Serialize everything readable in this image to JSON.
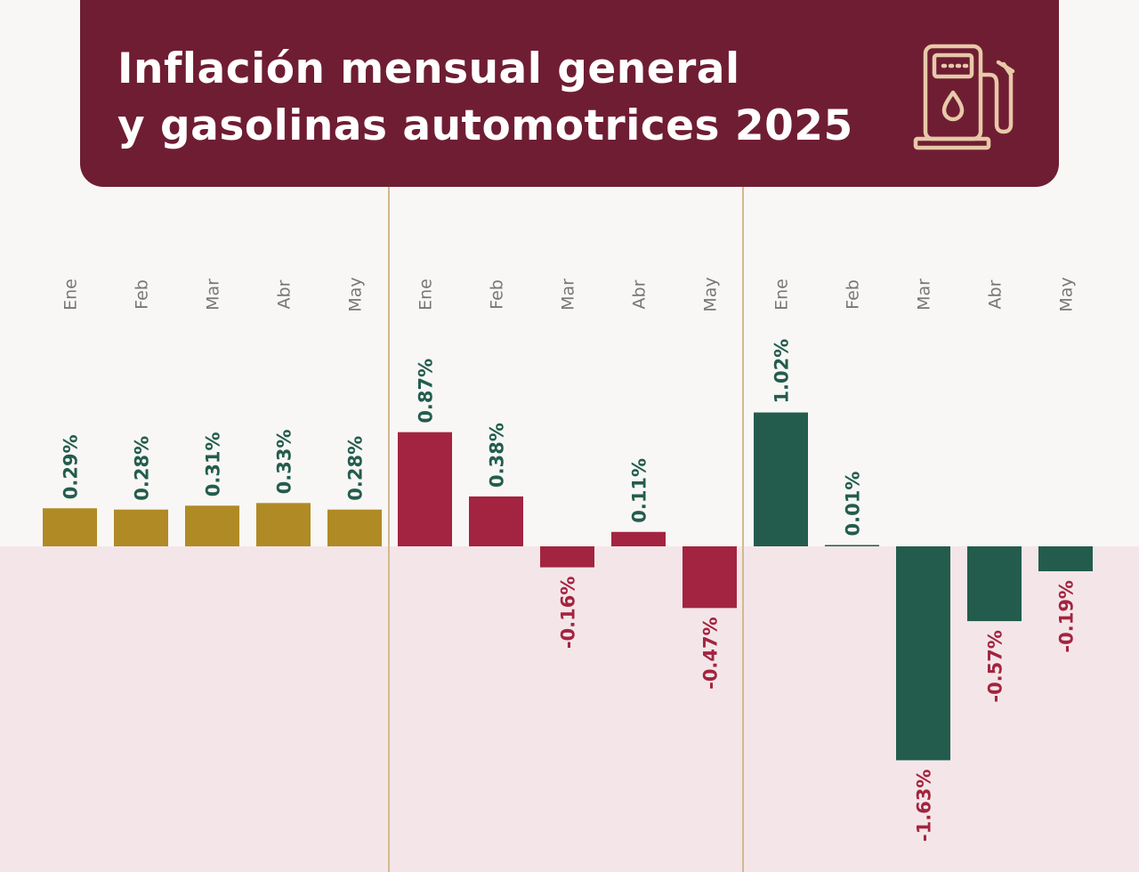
{
  "title_lines": [
    "Inflación mensual general",
    "y gasolinas automotrices 2025"
  ],
  "icon": "gas-pump-icon",
  "colors": {
    "header": "#6f1d33",
    "general": "#b08a24",
    "magna": "#a32440",
    "premium": "#235c4d",
    "divider": "#d2b98f",
    "month_label": "#777777"
  },
  "chart_data": {
    "type": "bar",
    "months": [
      "Ene",
      "Feb",
      "Mar",
      "Abr",
      "May"
    ],
    "ylim": [
      -1.63,
      1.02
    ],
    "groups": [
      {
        "values": [
          0.29,
          0.28,
          0.31,
          0.33,
          0.28
        ],
        "labels": [
          "0.29%",
          "0.28%",
          "0.31%",
          "0.33%",
          "0.28%"
        ]
      },
      {
        "values": [
          0.87,
          0.38,
          -0.16,
          0.11,
          -0.47
        ],
        "labels": [
          "0.87%",
          "0.38%",
          "-0.16%",
          "0.11%",
          "-0.47%"
        ]
      },
      {
        "values": [
          1.02,
          0.01,
          -1.63,
          -0.57,
          -0.19
        ],
        "labels": [
          "1.02%",
          "0.01%",
          "-1.63%",
          "-0.57%",
          "-0.19%"
        ]
      }
    ]
  }
}
